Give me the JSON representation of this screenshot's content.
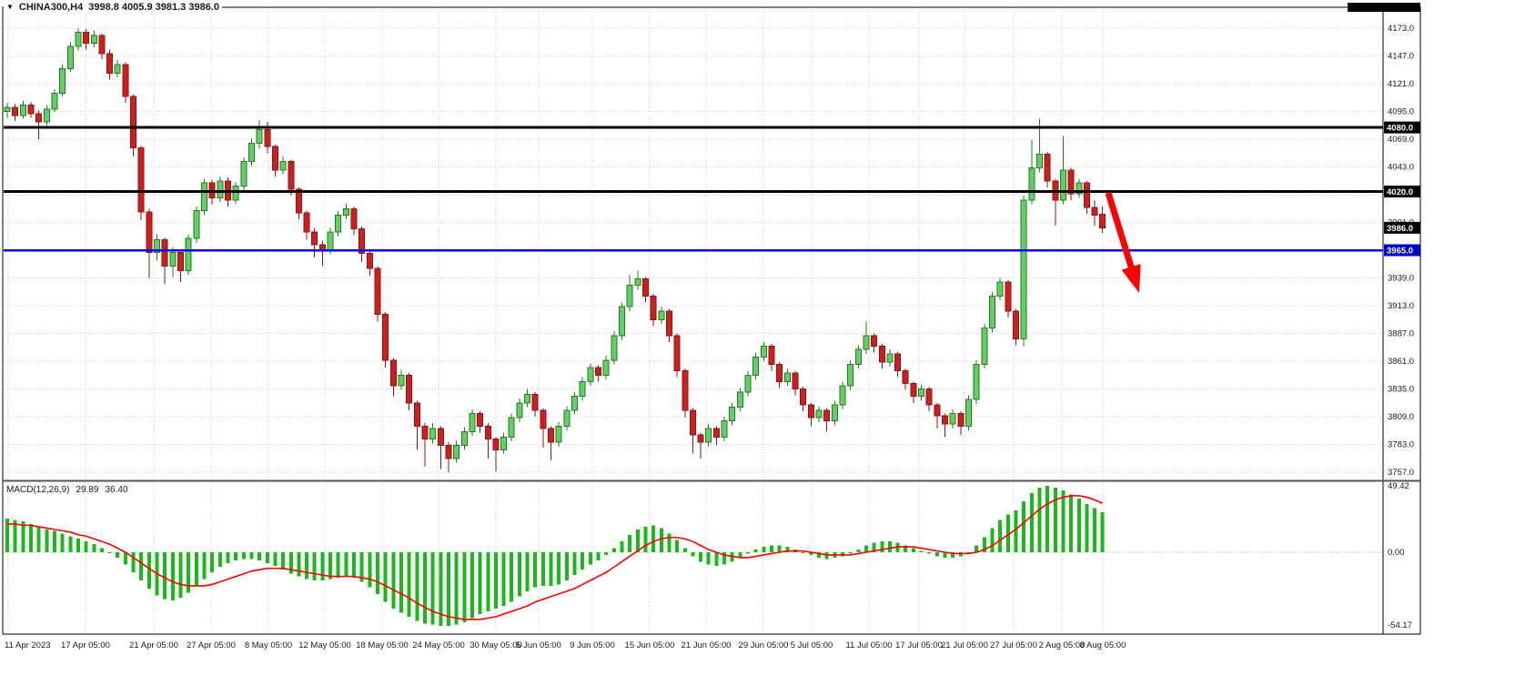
{
  "header": {
    "dropdown_icon": "▼",
    "symbol": "CHINA300,H4",
    "ohlc": "3998.8 4005.9 3981.3 3986.0"
  },
  "colors": {
    "bull_fill": "#66cc66",
    "bull_stroke": "#1e7d1e",
    "bear_fill": "#cc2020",
    "bear_stroke": "#8e1414",
    "macd_hist": "#18b918",
    "macd_signal": "#ff0000",
    "grid": "#c9c9c9",
    "axis_text": "#1a1a1a",
    "hline_black": "#000000",
    "hline_blue": "#0000ff",
    "badge_black": "#000000",
    "badge_blue": "#0000cc",
    "arrow": "#ff0000",
    "border": "#000000"
  },
  "chart_data": {
    "type": "candlestick",
    "title": "CHINA300,H4",
    "main": {
      "y_axis": {
        "min": 3757,
        "max": 4173,
        "step": 26,
        "tick_values": [
          4173,
          4147,
          4121,
          4095,
          4069,
          4043,
          4017,
          3991,
          3965,
          3939,
          3913,
          3887,
          3861,
          3835,
          3809,
          3783,
          3757
        ]
      },
      "hlines": [
        {
          "price": 4080,
          "color": "#000000",
          "width": 3,
          "label": "4080.0",
          "badge_bg": "#000000"
        },
        {
          "price": 4020,
          "color": "#000000",
          "width": 3,
          "label": "4020.0",
          "badge_bg": "#000000"
        },
        {
          "price": 3965,
          "color": "#0000ff",
          "width": 2.5,
          "label": "3965.0",
          "badge_bg": "#0000cc"
        }
      ],
      "current_price": {
        "value": 3986.0,
        "label": "3986.0",
        "badge_bg": "#000000"
      },
      "last_bar": {
        "open": 3998.8,
        "high": 4005.9,
        "low": 3981.3,
        "close": 3986.0
      },
      "candles": [
        [
          4095,
          4103,
          4089,
          4099
        ],
        [
          4099,
          4102,
          4086,
          4091
        ],
        [
          4091,
          4105,
          4088,
          4101
        ],
        [
          4101,
          4104,
          4089,
          4093
        ],
        [
          4093,
          4096,
          4069,
          4085
        ],
        [
          4085,
          4101,
          4082,
          4097
        ],
        [
          4097,
          4116,
          4094,
          4112
        ],
        [
          4112,
          4139,
          4109,
          4135
        ],
        [
          4135,
          4160,
          4132,
          4156
        ],
        [
          4156,
          4173,
          4152,
          4169
        ],
        [
          4169,
          4172,
          4153,
          4159
        ],
        [
          4159,
          4171,
          4155,
          4166
        ],
        [
          4166,
          4168,
          4144,
          4149
        ],
        [
          4149,
          4153,
          4125,
          4131
        ],
        [
          4131,
          4143,
          4127,
          4139
        ],
        [
          4139,
          4141,
          4103,
          4109
        ],
        [
          4109,
          4111,
          4053,
          4061
        ],
        [
          4061,
          4063,
          3993,
          4001
        ],
        [
          4001,
          4004,
          3939,
          3963
        ],
        [
          3963,
          3980,
          3955,
          3975
        ],
        [
          3975,
          3977,
          3933,
          3950
        ],
        [
          3950,
          3968,
          3940,
          3963
        ],
        [
          3963,
          3965,
          3935,
          3946
        ],
        [
          3946,
          3980,
          3942,
          3976
        ],
        [
          3976,
          4006,
          3972,
          4002
        ],
        [
          4002,
          4032,
          3998,
          4028
        ],
        [
          4028,
          4031,
          4008,
          4014
        ],
        [
          4014,
          4034,
          4010,
          4030
        ],
        [
          4030,
          4033,
          4006,
          4012
        ],
        [
          4012,
          4029,
          4008,
          4025
        ],
        [
          4025,
          4052,
          4021,
          4048
        ],
        [
          4048,
          4070,
          4044,
          4065
        ],
        [
          4065,
          4087,
          4060,
          4078
        ],
        [
          4078,
          4085,
          4056,
          4062
        ],
        [
          4062,
          4064,
          4034,
          4040
        ],
        [
          4040,
          4053,
          4036,
          4048
        ],
        [
          4048,
          4050,
          4016,
          4022
        ],
        [
          4022,
          4024,
          3994,
          4000
        ],
        [
          4000,
          4002,
          3975,
          3982
        ],
        [
          3982,
          3986,
          3958,
          3970
        ],
        [
          3970,
          3974,
          3950,
          3965
        ],
        [
          3965,
          3986,
          3961,
          3982
        ],
        [
          3982,
          4002,
          3978,
          3998
        ],
        [
          3998,
          4009,
          3994,
          4004
        ],
        [
          4004,
          4006,
          3979,
          3985
        ],
        [
          3985,
          3987,
          3954,
          3962
        ],
        [
          3962,
          3965,
          3941,
          3948
        ],
        [
          3948,
          3950,
          3898,
          3905
        ],
        [
          3905,
          3907,
          3855,
          3862
        ],
        [
          3862,
          3864,
          3828,
          3838
        ],
        [
          3838,
          3853,
          3834,
          3848
        ],
        [
          3848,
          3850,
          3815,
          3822
        ],
        [
          3822,
          3824,
          3778,
          3800
        ],
        [
          3800,
          3803,
          3762,
          3788
        ],
        [
          3788,
          3803,
          3784,
          3798
        ],
        [
          3798,
          3800,
          3760,
          3782
        ],
        [
          3782,
          3785,
          3757,
          3770
        ],
        [
          3770,
          3787,
          3766,
          3782
        ],
        [
          3782,
          3799,
          3778,
          3795
        ],
        [
          3795,
          3816,
          3791,
          3812
        ],
        [
          3812,
          3814,
          3794,
          3800
        ],
        [
          3800,
          3803,
          3770,
          3788
        ],
        [
          3788,
          3790,
          3758,
          3778
        ],
        [
          3778,
          3794,
          3774,
          3790
        ],
        [
          3790,
          3812,
          3786,
          3808
        ],
        [
          3808,
          3826,
          3804,
          3822
        ],
        [
          3822,
          3835,
          3818,
          3830
        ],
        [
          3830,
          3832,
          3809,
          3815
        ],
        [
          3815,
          3817,
          3780,
          3798
        ],
        [
          3798,
          3800,
          3768,
          3785
        ],
        [
          3785,
          3804,
          3781,
          3800
        ],
        [
          3800,
          3819,
          3796,
          3815
        ],
        [
          3815,
          3832,
          3811,
          3828
        ],
        [
          3828,
          3846,
          3824,
          3842
        ],
        [
          3842,
          3859,
          3838,
          3855
        ],
        [
          3855,
          3857,
          3842,
          3848
        ],
        [
          3848,
          3866,
          3844,
          3862
        ],
        [
          3862,
          3889,
          3858,
          3885
        ],
        [
          3885,
          3916,
          3881,
          3912
        ],
        [
          3912,
          3942,
          3908,
          3932
        ],
        [
          3932,
          3946,
          3928,
          3938
        ],
        [
          3938,
          3940,
          3916,
          3922
        ],
        [
          3922,
          3924,
          3894,
          3900
        ],
        [
          3900,
          3912,
          3896,
          3908
        ],
        [
          3908,
          3910,
          3879,
          3885
        ],
        [
          3885,
          3887,
          3846,
          3852
        ],
        [
          3852,
          3854,
          3808,
          3815
        ],
        [
          3815,
          3817,
          3775,
          3792
        ],
        [
          3792,
          3794,
          3770,
          3785
        ],
        [
          3785,
          3802,
          3781,
          3798
        ],
        [
          3798,
          3800,
          3782,
          3790
        ],
        [
          3790,
          3809,
          3786,
          3805
        ],
        [
          3805,
          3822,
          3801,
          3818
        ],
        [
          3818,
          3836,
          3814,
          3832
        ],
        [
          3832,
          3852,
          3828,
          3848
        ],
        [
          3848,
          3869,
          3844,
          3865
        ],
        [
          3865,
          3879,
          3861,
          3875
        ],
        [
          3875,
          3877,
          3852,
          3858
        ],
        [
          3858,
          3860,
          3836,
          3842
        ],
        [
          3842,
          3854,
          3838,
          3850
        ],
        [
          3850,
          3852,
          3829,
          3835
        ],
        [
          3835,
          3837,
          3814,
          3820
        ],
        [
          3820,
          3822,
          3800,
          3808
        ],
        [
          3808,
          3819,
          3804,
          3815
        ],
        [
          3815,
          3817,
          3795,
          3805
        ],
        [
          3805,
          3824,
          3801,
          3820
        ],
        [
          3820,
          3842,
          3816,
          3838
        ],
        [
          3838,
          3862,
          3834,
          3858
        ],
        [
          3858,
          3876,
          3854,
          3872
        ],
        [
          3872,
          3898,
          3868,
          3885
        ],
        [
          3885,
          3887,
          3869,
          3875
        ],
        [
          3875,
          3877,
          3854,
          3860
        ],
        [
          3860,
          3872,
          3856,
          3868
        ],
        [
          3868,
          3870,
          3846,
          3852
        ],
        [
          3852,
          3854,
          3834,
          3840
        ],
        [
          3840,
          3842,
          3822,
          3828
        ],
        [
          3828,
          3839,
          3824,
          3835
        ],
        [
          3835,
          3837,
          3814,
          3820
        ],
        [
          3820,
          3822,
          3798,
          3810
        ],
        [
          3810,
          3812,
          3790,
          3802
        ],
        [
          3802,
          3816,
          3798,
          3812
        ],
        [
          3812,
          3814,
          3792,
          3800
        ],
        [
          3800,
          3829,
          3796,
          3825
        ],
        [
          3825,
          3862,
          3821,
          3858
        ],
        [
          3858,
          3896,
          3854,
          3892
        ],
        [
          3892,
          3926,
          3888,
          3922
        ],
        [
          3922,
          3939,
          3918,
          3935
        ],
        [
          3935,
          3937,
          3902,
          3908
        ],
        [
          3908,
          3910,
          3876,
          3882
        ],
        [
          3882,
          4016,
          3875,
          4012
        ],
        [
          4012,
          4068,
          4008,
          4042
        ],
        [
          4042,
          4088,
          4038,
          4055
        ],
        [
          4055,
          4057,
          4024,
          4030
        ],
        [
          4030,
          4032,
          3988,
          4012
        ],
        [
          4012,
          4072,
          4008,
          4040
        ],
        [
          4040,
          4042,
          4012,
          4018
        ],
        [
          4018,
          4032,
          4014,
          4028
        ],
        [
          4028,
          4030,
          3999,
          4005
        ],
        [
          4005,
          4012,
          3988,
          3998
        ],
        [
          3998.8,
          4005.9,
          3981.3,
          3986.0
        ]
      ]
    },
    "macd": {
      "label": "MACD(12,26,9)",
      "macd_value_text": "29.89",
      "signal_value_text": "36.40",
      "macd_value": 29.89,
      "signal_value": 36.4,
      "ylim": [
        -54.17,
        49.42
      ],
      "y_ticks": [
        49.42,
        0.0,
        -54.17
      ],
      "histogram": [
        25,
        24,
        23,
        21,
        19,
        17,
        16,
        14,
        12,
        10,
        8,
        6,
        3,
        0,
        -4,
        -9,
        -15,
        -21,
        -27,
        -32,
        -35,
        -36,
        -34,
        -30,
        -25,
        -20,
        -15,
        -11,
        -8,
        -6,
        -5,
        -5,
        -6,
        -8,
        -10,
        -13,
        -16,
        -18,
        -20,
        -21,
        -21,
        -20,
        -19,
        -18,
        -19,
        -22,
        -26,
        -31,
        -37,
        -42,
        -45,
        -48,
        -51,
        -53,
        -54,
        -55,
        -55,
        -54,
        -52,
        -49,
        -46,
        -44,
        -42,
        -40,
        -37,
        -33,
        -29,
        -26,
        -25,
        -25,
        -24,
        -21,
        -17,
        -13,
        -9,
        -6,
        -2,
        3,
        8,
        13,
        17,
        19,
        20,
        18,
        14,
        9,
        3,
        -3,
        -7,
        -9,
        -10,
        -9,
        -7,
        -4,
        -1,
        2,
        4,
        5,
        5,
        4,
        2,
        0,
        -2,
        -4,
        -5,
        -4,
        -3,
        -1,
        2,
        5,
        7,
        8,
        8,
        7,
        5,
        3,
        1,
        -1,
        -3,
        -4,
        -4,
        -3,
        0,
        5,
        11,
        18,
        24,
        28,
        31,
        38,
        44,
        48,
        49.42,
        48,
        46,
        43,
        40,
        36,
        33,
        29.89
      ],
      "signal": [
        21,
        21,
        20,
        20,
        19,
        18,
        17,
        16,
        15,
        13,
        12,
        10,
        8,
        6,
        3,
        0,
        -4,
        -8,
        -12,
        -16,
        -19,
        -22,
        -24,
        -25,
        -25,
        -25,
        -24,
        -22,
        -20,
        -18,
        -16,
        -14,
        -13,
        -12,
        -12,
        -12,
        -13,
        -14,
        -15,
        -16,
        -17,
        -18,
        -18,
        -18,
        -18,
        -19,
        -20,
        -22,
        -25,
        -28,
        -31,
        -34,
        -38,
        -41,
        -44,
        -46,
        -48,
        -49,
        -50,
        -50,
        -50,
        -49,
        -48,
        -46,
        -44,
        -42,
        -40,
        -37,
        -35,
        -33,
        -31,
        -29,
        -27,
        -24,
        -21,
        -18,
        -15,
        -11,
        -7,
        -3,
        1,
        5,
        8,
        10,
        11,
        11,
        10,
        8,
        5,
        2,
        0,
        -2,
        -3,
        -4,
        -4,
        -3,
        -2,
        -1,
        0,
        1,
        1,
        1,
        0,
        -1,
        -2,
        -2,
        -2,
        -2,
        -1,
        0,
        1,
        2,
        3,
        4,
        4,
        4,
        3,
        2,
        1,
        0,
        -1,
        -1,
        -1,
        0,
        2,
        5,
        9,
        13,
        17,
        22,
        27,
        32,
        36,
        39,
        41,
        42,
        42,
        41,
        39,
        36.4
      ]
    },
    "x_axis": {
      "ticks": [
        {
          "text": "11 Apr 2023",
          "x": 9
        },
        {
          "text": "17 Apr 05:00",
          "x": 94
        },
        {
          "text": "21 Apr 05:00",
          "x": 169
        },
        {
          "text": "27 Apr 05:00",
          "x": 232
        },
        {
          "text": "8 May 05:00",
          "x": 295
        },
        {
          "text": "12 May 05:00",
          "x": 357
        },
        {
          "text": "18 May 05:00",
          "x": 420
        },
        {
          "text": "24 May 05:00",
          "x": 482
        },
        {
          "text": "30 May 05:00",
          "x": 545
        },
        {
          "text": "5 Jun 05:00",
          "x": 592
        },
        {
          "text": "9 Jun 05:00",
          "x": 651
        },
        {
          "text": "15 Jun 05:00",
          "x": 714
        },
        {
          "text": "21 Jun 05:00",
          "x": 776
        },
        {
          "text": "29 Jun 05:00",
          "x": 839
        },
        {
          "text": "5 Jul 05:00",
          "x": 892
        },
        {
          "text": "11 Jul 05:00",
          "x": 955
        },
        {
          "text": "17 Jul 05:00",
          "x": 1010
        },
        {
          "text": "21 Jul 05:00",
          "x": 1060
        },
        {
          "text": "27 Jul 05:00",
          "x": 1114
        },
        {
          "text": "2 Aug 05:00",
          "x": 1167
        },
        {
          "text": "8 Aug 05:00",
          "x": 1212
        }
      ]
    },
    "annotations": [
      {
        "type": "arrow",
        "color": "#ff0000",
        "from": [
          1218,
          212
        ],
        "to": [
          1252,
          322
        ]
      }
    ]
  }
}
